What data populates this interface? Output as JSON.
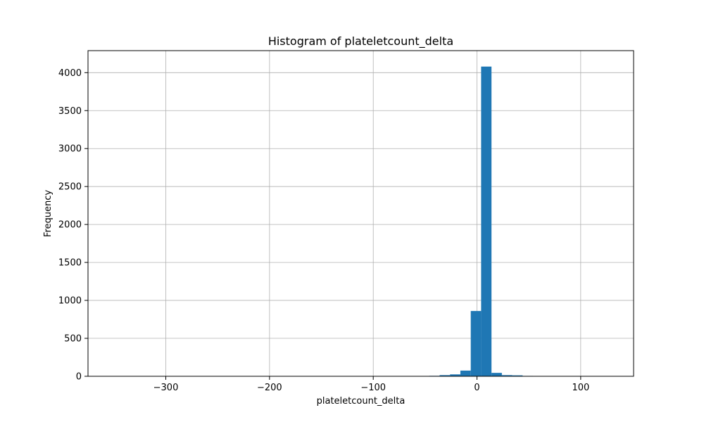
{
  "chart_data": {
    "type": "bar",
    "title": "Histogram of plateletcount_delta",
    "xlabel": "plateletcount_delta",
    "ylabel": "Frequency",
    "xlim": [
      -375,
      151
    ],
    "ylim": [
      0,
      4290
    ],
    "grid": true,
    "bar_color": "#1f77b4",
    "x_ticks": [
      {
        "value": -300,
        "label": "−300"
      },
      {
        "value": -200,
        "label": "−200"
      },
      {
        "value": -100,
        "label": "−100"
      },
      {
        "value": 0,
        "label": "0"
      },
      {
        "value": 100,
        "label": "100"
      }
    ],
    "y_ticks": [
      {
        "value": 0,
        "label": "0"
      },
      {
        "value": 500,
        "label": "500"
      },
      {
        "value": 1000,
        "label": "1000"
      },
      {
        "value": 1500,
        "label": "1500"
      },
      {
        "value": 2000,
        "label": "2000"
      },
      {
        "value": 2500,
        "label": "2500"
      },
      {
        "value": 3000,
        "label": "3000"
      },
      {
        "value": 3500,
        "label": "3500"
      },
      {
        "value": 4000,
        "label": "4000"
      }
    ],
    "bins": [
      {
        "x0": -126,
        "x1": -116,
        "count": 2
      },
      {
        "x0": -116,
        "x1": -106,
        "count": 2
      },
      {
        "x0": -96,
        "x1": -86,
        "count": 2
      },
      {
        "x0": -86,
        "x1": -76,
        "count": 2
      },
      {
        "x0": -76,
        "x1": -66,
        "count": 3
      },
      {
        "x0": -66,
        "x1": -56,
        "count": 3
      },
      {
        "x0": -56,
        "x1": -46,
        "count": 4
      },
      {
        "x0": -46,
        "x1": -36,
        "count": 6
      },
      {
        "x0": -36,
        "x1": -26,
        "count": 15
      },
      {
        "x0": -26,
        "x1": -16,
        "count": 25
      },
      {
        "x0": -16,
        "x1": -6,
        "count": 75
      },
      {
        "x0": -6,
        "x1": 4,
        "count": 860
      },
      {
        "x0": 4,
        "x1": 14,
        "count": 4080
      },
      {
        "x0": 14,
        "x1": 24,
        "count": 45
      },
      {
        "x0": 24,
        "x1": 34,
        "count": 15
      },
      {
        "x0": 34,
        "x1": 44,
        "count": 12
      },
      {
        "x0": 44,
        "x1": 54,
        "count": 5
      },
      {
        "x0": 54,
        "x1": 64,
        "count": 4
      },
      {
        "x0": 64,
        "x1": 74,
        "count": 3
      },
      {
        "x0": 74,
        "x1": 84,
        "count": 2
      },
      {
        "x0": 84,
        "x1": 94,
        "count": 3
      },
      {
        "x0": 94,
        "x1": 104,
        "count": 2
      },
      {
        "x0": 104,
        "x1": 114,
        "count": 2
      },
      {
        "x0": 114,
        "x1": 124,
        "count": 3
      },
      {
        "x0": 124,
        "x1": 134,
        "count": 2
      }
    ]
  }
}
